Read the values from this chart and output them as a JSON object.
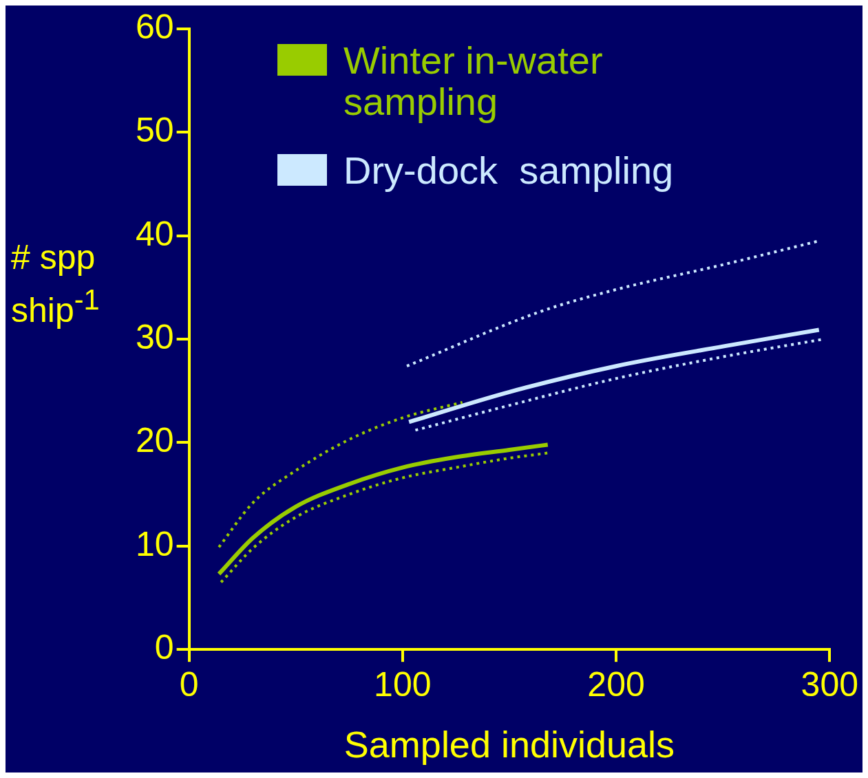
{
  "chart_data": {
    "type": "line",
    "xlabel": "Sampled individuals",
    "ylabel": "# spp ship$^{-1}$",
    "xlim": [
      0,
      300
    ],
    "xticks": [
      0,
      100,
      200,
      300
    ],
    "ylim": [
      0,
      60
    ],
    "yticks": [
      0,
      10,
      20,
      30,
      40,
      50,
      60
    ],
    "legend": "top left",
    "marker": "none",
    "series": [
      {
        "name": "Winter in-water sampling",
        "color": "#99cc00",
        "line_style": "solid",
        "x": [
          14,
          30,
          50,
          75,
          100,
          125,
          150,
          168
        ],
        "values": [
          7.3,
          10.8,
          13.8,
          16.0,
          17.6,
          18.6,
          19.3,
          19.8
        ]
      },
      {
        "color": "#99cc00",
        "line_style": "dotted",
        "x": [
          14,
          30,
          50,
          75,
          100,
          128
        ],
        "values": [
          9.9,
          14.2,
          17.3,
          20.3,
          22.4,
          23.9
        ]
      },
      {
        "color": "#99cc00",
        "line_style": "dotted",
        "x": [
          15,
          30,
          50,
          75,
          100,
          125,
          150,
          168
        ],
        "values": [
          6.5,
          9.8,
          12.8,
          15.0,
          16.6,
          17.6,
          18.5,
          19.0
        ]
      },
      {
        "name": "Dry-dock  sampling",
        "color": "#cce9ff",
        "line_style": "solid",
        "x": [
          103,
          150,
          200,
          250,
          295
        ],
        "values": [
          22.0,
          24.9,
          27.4,
          29.3,
          30.9
        ]
      },
      {
        "color": "#cce9ff",
        "line_style": "dotted",
        "x": [
          102,
          165,
          200,
          250,
          295
        ],
        "values": [
          27.4,
          32.7,
          34.8,
          37.2,
          39.5
        ]
      },
      {
        "color": "#cce9ff",
        "line_style": "dotted",
        "x": [
          106,
          150,
          200,
          250,
          297
        ],
        "values": [
          21.2,
          23.6,
          26.2,
          28.3,
          30.0
        ]
      }
    ]
  }
}
